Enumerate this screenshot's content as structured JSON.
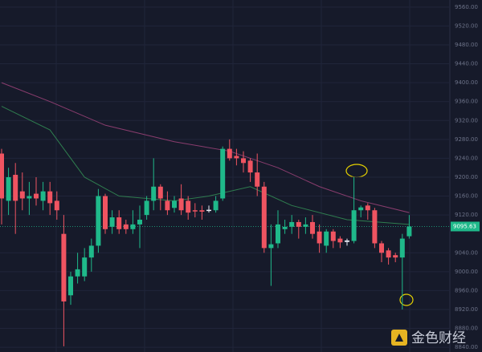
{
  "chart_data": {
    "type": "candlestick",
    "up_color": "#1fb98a",
    "down_color": "#ef5461",
    "doji_color": "#e8ecf5",
    "grid": true,
    "ylim": [
      8830,
      9575
    ],
    "yticks": [
      {
        "value": 9560,
        "label": "9560.00"
      },
      {
        "value": 9520,
        "label": "9520.00"
      },
      {
        "value": 9480,
        "label": "9480.00"
      },
      {
        "value": 9440,
        "label": "9440.00"
      },
      {
        "value": 9400,
        "label": "9400.00"
      },
      {
        "value": 9360,
        "label": "9360.00"
      },
      {
        "value": 9320,
        "label": "9320.00"
      },
      {
        "value": 9280,
        "label": "9280.00"
      },
      {
        "value": 9240,
        "label": "9240.00"
      },
      {
        "value": 9200,
        "label": "9200.00"
      },
      {
        "value": 9160,
        "label": "9160.00"
      },
      {
        "value": 9120,
        "label": "9120.00"
      },
      {
        "value": 9040,
        "label": "9040.00"
      },
      {
        "value": 9000,
        "label": "9000.00"
      },
      {
        "value": 8960,
        "label": "8960.00"
      },
      {
        "value": 8920,
        "label": "8920.00"
      },
      {
        "value": 8880,
        "label": "8880.00"
      },
      {
        "value": 8840,
        "label": "8840.00"
      }
    ],
    "last_price": 9095.63,
    "open": [
      9250,
      9150,
      9205,
      9170,
      9155,
      9165,
      9150,
      9170,
      9150,
      9080,
      8950,
      8990,
      8990,
      9030,
      9055,
      9160,
      9095,
      9115,
      9100,
      9090,
      9100,
      9120,
      9150,
      9180,
      9150,
      9135,
      9155,
      9150,
      9130,
      9130,
      9130,
      9130,
      9155,
      9260,
      9245,
      9240,
      9235,
      9210,
      9180,
      9050,
      9060,
      9090,
      9095,
      9105,
      9095,
      9105,
      9085,
      9055,
      9085,
      9070,
      9063,
      9065,
      9130,
      9140,
      9130,
      9060,
      9045,
      9035,
      9030,
      9075
    ],
    "close": [
      9155,
      9200,
      9150,
      9155,
      9160,
      9155,
      9170,
      9145,
      9130,
      8937,
      8990,
      9005,
      9030,
      9055,
      9160,
      9090,
      9115,
      9090,
      9090,
      9100,
      9110,
      9150,
      9180,
      9155,
      9130,
      9150,
      9130,
      9125,
      9128,
      9127,
      9131,
      9150,
      9260,
      9240,
      9240,
      9230,
      9210,
      9180,
      9050,
      9058,
      9100,
      9095,
      9105,
      9095,
      9100,
      9080,
      9060,
      9085,
      9065,
      9062,
      9066,
      9130,
      9136,
      9130,
      9060,
      9040,
      9030,
      9030,
      9070,
      9095.63
    ],
    "high": [
      9260,
      9220,
      9230,
      9210,
      9190,
      9200,
      9190,
      9190,
      9170,
      9120,
      9000,
      9040,
      9050,
      9070,
      9175,
      9165,
      9130,
      9130,
      9110,
      9130,
      9140,
      9160,
      9240,
      9185,
      9170,
      9160,
      9185,
      9160,
      9145,
      9140,
      9140,
      9160,
      9265,
      9280,
      9260,
      9255,
      9240,
      9250,
      9190,
      9100,
      9130,
      9110,
      9120,
      9110,
      9115,
      9120,
      9100,
      9090,
      9090,
      9075,
      9070,
      9200,
      9140,
      9145,
      9135,
      9065,
      9050,
      9040,
      9080,
      9120
    ],
    "low": [
      9100,
      9120,
      9080,
      9130,
      9120,
      9140,
      9130,
      9120,
      9110,
      8842,
      8930,
      8975,
      8980,
      9000,
      9040,
      9080,
      9080,
      9080,
      9080,
      9080,
      9050,
      9110,
      9130,
      9130,
      9120,
      9125,
      9120,
      9110,
      9115,
      9110,
      9125,
      9125,
      9150,
      9235,
      9225,
      9210,
      9190,
      9160,
      9040,
      8970,
      9050,
      9080,
      9080,
      9070,
      9080,
      9070,
      9040,
      9040,
      9050,
      9050,
      9055,
      9060,
      9115,
      9110,
      9050,
      9020,
      9015,
      9020,
      8920,
      9070
    ],
    "overlays": [
      {
        "color": "#8a3d6e",
        "x": [
          0,
          7,
          15,
          25,
          33,
          40,
          46,
          52,
          59
        ],
        "values": [
          9400,
          9360,
          9310,
          9275,
          9255,
          9220,
          9180,
          9150,
          9125
        ]
      },
      {
        "color": "#2f7d4f",
        "x": [
          0,
          7,
          12,
          17,
          25,
          30,
          36,
          42,
          50,
          59
        ],
        "values": [
          9350,
          9300,
          9200,
          9160,
          9150,
          9160,
          9180,
          9140,
          9110,
          9100
        ]
      }
    ],
    "watermark": "金色财经"
  }
}
